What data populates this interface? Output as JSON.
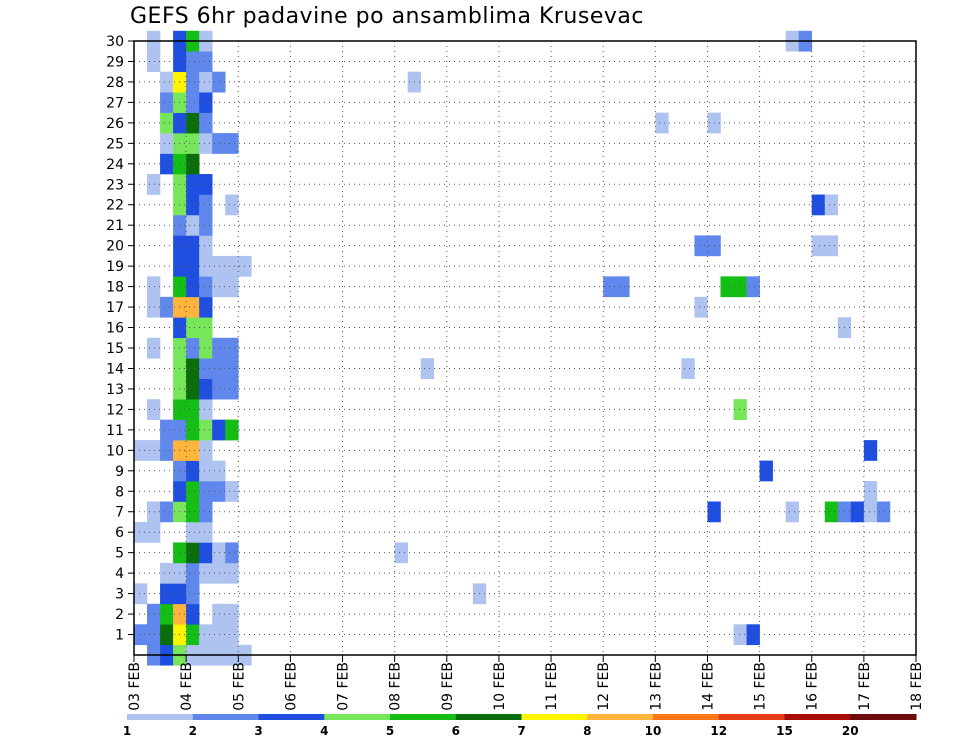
{
  "chart_data": {
    "type": "heatmap",
    "title": "GEFS 6hr padavine po ansamblima Krusevac",
    "x_ticks": [
      "03 FEB",
      "04 FEB",
      "05 FEB",
      "06 FEB",
      "07 FEB",
      "08 FEB",
      "09 FEB",
      "10 FEB",
      "11 FEB",
      "12 FEB",
      "13 FEB",
      "14 FEB",
      "15 FEB",
      "16 FEB",
      "17 FEB",
      "18 FEB"
    ],
    "y_ticks": [
      1,
      2,
      3,
      4,
      5,
      6,
      7,
      8,
      9,
      10,
      11,
      12,
      13,
      14,
      15,
      16,
      17,
      18,
      19,
      20,
      21,
      22,
      23,
      24,
      25,
      26,
      27,
      28,
      29,
      30
    ],
    "xlim_days": [
      0,
      15
    ],
    "ylim": [
      0,
      30
    ],
    "time_step_hours": 6,
    "grid": true,
    "colorbar": {
      "thresholds": [
        1,
        2,
        3,
        4,
        5,
        6,
        7,
        8,
        10,
        12,
        15,
        20
      ],
      "labels": [
        "1",
        "2",
        "3",
        "4",
        "5",
        "6",
        "7",
        "8",
        "10",
        "12",
        "15",
        "20"
      ],
      "colors": [
        "#aec3f0",
        "#5f87ec",
        "#1f4fe0",
        "#78e65a",
        "#14be14",
        "#0a6e0a",
        "#fff500",
        "#ffb43c",
        "#ff7814",
        "#e63c14",
        "#aa0a0a",
        "#6e0a0a"
      ]
    },
    "points": [
      [
        1,
        0,
        2
      ],
      [
        2,
        0,
        3
      ],
      [
        3,
        0,
        4
      ],
      [
        4,
        0,
        1
      ],
      [
        5,
        0,
        1
      ],
      [
        6,
        0,
        1
      ],
      [
        7,
        0,
        1
      ],
      [
        8,
        0,
        1
      ],
      [
        0,
        1,
        2
      ],
      [
        1,
        1,
        2
      ],
      [
        2,
        1,
        6
      ],
      [
        3,
        1,
        7
      ],
      [
        4,
        1,
        5
      ],
      [
        5,
        1,
        1
      ],
      [
        6,
        1,
        1
      ],
      [
        7,
        1,
        1
      ],
      [
        46,
        1,
        1
      ],
      [
        47,
        1,
        3
      ],
      [
        1,
        2,
        2
      ],
      [
        2,
        2,
        5
      ],
      [
        3,
        2,
        8
      ],
      [
        4,
        2,
        3
      ],
      [
        6,
        2,
        1
      ],
      [
        7,
        2,
        1
      ],
      [
        0,
        3,
        1
      ],
      [
        2,
        3,
        3
      ],
      [
        3,
        3,
        3
      ],
      [
        4,
        3,
        2
      ],
      [
        26,
        3,
        1
      ],
      [
        2,
        4,
        1
      ],
      [
        3,
        4,
        1
      ],
      [
        4,
        4,
        2
      ],
      [
        5,
        4,
        1
      ],
      [
        6,
        4,
        1
      ],
      [
        7,
        4,
        1
      ],
      [
        3,
        5,
        5
      ],
      [
        4,
        5,
        6
      ],
      [
        5,
        5,
        3
      ],
      [
        6,
        5,
        1
      ],
      [
        7,
        5,
        2
      ],
      [
        20,
        5,
        1
      ],
      [
        0,
        6,
        1
      ],
      [
        1,
        6,
        1
      ],
      [
        4,
        6,
        1
      ],
      [
        5,
        6,
        1
      ],
      [
        1,
        7,
        1
      ],
      [
        2,
        7,
        2
      ],
      [
        3,
        7,
        4
      ],
      [
        4,
        7,
        5
      ],
      [
        5,
        7,
        2
      ],
      [
        44,
        7,
        3
      ],
      [
        50,
        7,
        1
      ],
      [
        53,
        7,
        5
      ],
      [
        54,
        7,
        2
      ],
      [
        55,
        7,
        3
      ],
      [
        56,
        7,
        1
      ],
      [
        57,
        7,
        2
      ],
      [
        3,
        8,
        3
      ],
      [
        4,
        8,
        5
      ],
      [
        5,
        8,
        2
      ],
      [
        6,
        8,
        2
      ],
      [
        7,
        8,
        1
      ],
      [
        56,
        8,
        1
      ],
      [
        3,
        9,
        2
      ],
      [
        4,
        9,
        3
      ],
      [
        5,
        9,
        1
      ],
      [
        6,
        9,
        1
      ],
      [
        48,
        9,
        3
      ],
      [
        0,
        10,
        1
      ],
      [
        1,
        10,
        1
      ],
      [
        2,
        10,
        2
      ],
      [
        3,
        10,
        8
      ],
      [
        4,
        10,
        8
      ],
      [
        5,
        10,
        1
      ],
      [
        56,
        10,
        3
      ],
      [
        2,
        11,
        2
      ],
      [
        3,
        11,
        2
      ],
      [
        4,
        11,
        5
      ],
      [
        5,
        11,
        4
      ],
      [
        6,
        11,
        3
      ],
      [
        7,
        11,
        5
      ],
      [
        1,
        12,
        1
      ],
      [
        3,
        12,
        5
      ],
      [
        4,
        12,
        5
      ],
      [
        5,
        12,
        1
      ],
      [
        46,
        12,
        4
      ],
      [
        3,
        13,
        4
      ],
      [
        4,
        13,
        6
      ],
      [
        5,
        13,
        3
      ],
      [
        6,
        13,
        2
      ],
      [
        7,
        13,
        2
      ],
      [
        3,
        14,
        4
      ],
      [
        4,
        14,
        6
      ],
      [
        5,
        14,
        2
      ],
      [
        6,
        14,
        2
      ],
      [
        7,
        14,
        2
      ],
      [
        22,
        14,
        1
      ],
      [
        42,
        14,
        1
      ],
      [
        1,
        15,
        1
      ],
      [
        3,
        15,
        4
      ],
      [
        4,
        15,
        2
      ],
      [
        5,
        15,
        4
      ],
      [
        6,
        15,
        2
      ],
      [
        7,
        15,
        2
      ],
      [
        3,
        16,
        3
      ],
      [
        4,
        16,
        4
      ],
      [
        5,
        16,
        4
      ],
      [
        54,
        16,
        1
      ],
      [
        1,
        17,
        1
      ],
      [
        2,
        17,
        2
      ],
      [
        3,
        17,
        8
      ],
      [
        4,
        17,
        8
      ],
      [
        5,
        17,
        3
      ],
      [
        43,
        17,
        1
      ],
      [
        1,
        18,
        1
      ],
      [
        3,
        18,
        5
      ],
      [
        4,
        18,
        3
      ],
      [
        5,
        18,
        2
      ],
      [
        6,
        18,
        1
      ],
      [
        7,
        18,
        1
      ],
      [
        36,
        18,
        2
      ],
      [
        37,
        18,
        2
      ],
      [
        45,
        18,
        5
      ],
      [
        46,
        18,
        5
      ],
      [
        47,
        18,
        2
      ],
      [
        3,
        19,
        3
      ],
      [
        4,
        19,
        3
      ],
      [
        5,
        19,
        1
      ],
      [
        6,
        19,
        1
      ],
      [
        7,
        19,
        1
      ],
      [
        8,
        19,
        1
      ],
      [
        3,
        20,
        3
      ],
      [
        4,
        20,
        3
      ],
      [
        5,
        20,
        1
      ],
      [
        43,
        20,
        2
      ],
      [
        44,
        20,
        2
      ],
      [
        52,
        20,
        1
      ],
      [
        53,
        20,
        1
      ],
      [
        3,
        21,
        2
      ],
      [
        4,
        21,
        1
      ],
      [
        5,
        21,
        2
      ],
      [
        3,
        22,
        4
      ],
      [
        4,
        22,
        3
      ],
      [
        5,
        22,
        2
      ],
      [
        7,
        22,
        1
      ],
      [
        52,
        22,
        3
      ],
      [
        53,
        22,
        1
      ],
      [
        1,
        23,
        1
      ],
      [
        3,
        23,
        4
      ],
      [
        4,
        23,
        3
      ],
      [
        5,
        23,
        3
      ],
      [
        2,
        24,
        3
      ],
      [
        3,
        24,
        5
      ],
      [
        4,
        24,
        6
      ],
      [
        2,
        25,
        1
      ],
      [
        3,
        25,
        4
      ],
      [
        4,
        25,
        4
      ],
      [
        5,
        25,
        1
      ],
      [
        6,
        25,
        2
      ],
      [
        7,
        25,
        2
      ],
      [
        2,
        26,
        4
      ],
      [
        3,
        26,
        3
      ],
      [
        4,
        26,
        6
      ],
      [
        5,
        26,
        2
      ],
      [
        40,
        26,
        1
      ],
      [
        44,
        26,
        1
      ],
      [
        2,
        27,
        2
      ],
      [
        3,
        27,
        4
      ],
      [
        4,
        27,
        2
      ],
      [
        5,
        27,
        3
      ],
      [
        2,
        28,
        1
      ],
      [
        3,
        28,
        7
      ],
      [
        4,
        28,
        2
      ],
      [
        5,
        28,
        1
      ],
      [
        6,
        28,
        2
      ],
      [
        21,
        28,
        1
      ],
      [
        1,
        29,
        1
      ],
      [
        3,
        29,
        3
      ],
      [
        4,
        29,
        2
      ],
      [
        5,
        29,
        2
      ],
      [
        1,
        30,
        1
      ],
      [
        3,
        30,
        3
      ],
      [
        4,
        30,
        5
      ],
      [
        5,
        30,
        1
      ],
      [
        50,
        30,
        1
      ],
      [
        51,
        30,
        2
      ]
    ]
  }
}
